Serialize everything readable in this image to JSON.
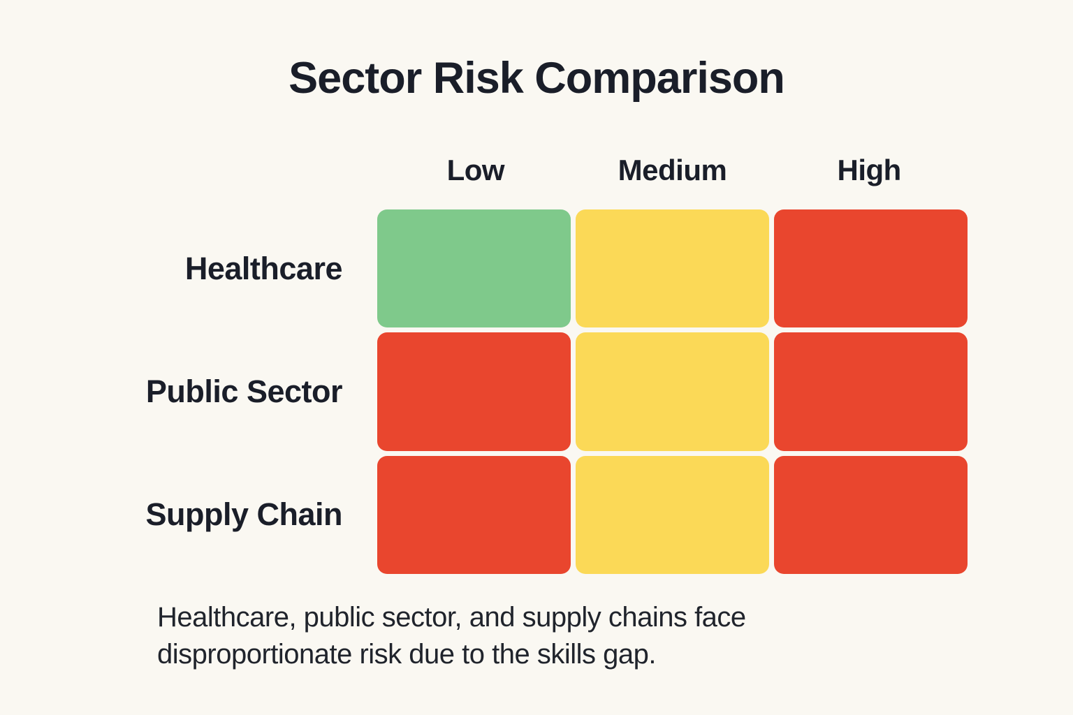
{
  "title": "Sector Risk Comparison",
  "caption": {
    "line1": "Healthcare, public sector, and supply chains face",
    "line2": "disproportionate risk due to the skills gap."
  },
  "chart_data": {
    "type": "heatmap",
    "title": "Sector Risk Comparison",
    "columns": [
      "Low",
      "Medium",
      "High"
    ],
    "rows": [
      {
        "name": "Healthcare",
        "cells": [
          "green",
          "yellow",
          "red"
        ]
      },
      {
        "name": "Public Sector",
        "cells": [
          "red",
          "yellow",
          "red"
        ]
      },
      {
        "name": "Supply Chain",
        "cells": [
          "red",
          "yellow",
          "red"
        ]
      }
    ],
    "palette": {
      "green": "#7FC98B",
      "yellow": "#FBD957",
      "red": "#E9462E"
    },
    "legend": "none",
    "grid_layout": "3x3 rounded cells",
    "annotation": "Healthcare, public sector, and supply chains face disproportionate risk due to the skills gap."
  },
  "colors": {
    "background": "#FAF8F2",
    "text": "#1A1E29"
  }
}
